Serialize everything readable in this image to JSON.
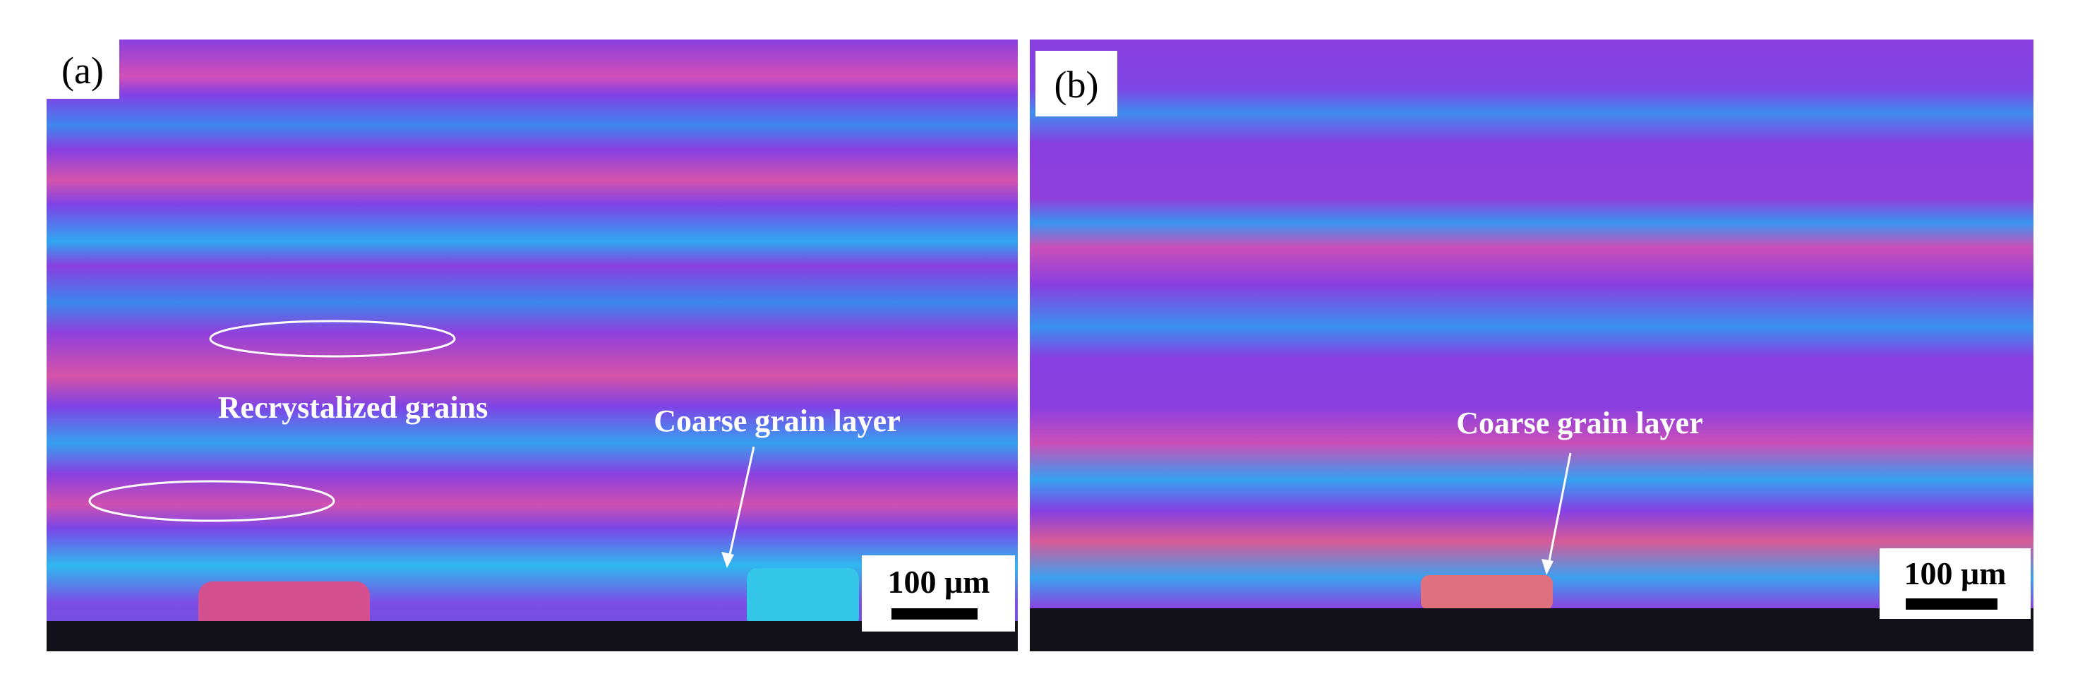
{
  "panels": [
    {
      "label": "(a)",
      "annotations": [
        "Recrystalized grains",
        "Coarse grain layer"
      ],
      "scale_bar": "100 μm"
    },
    {
      "label": "(b)",
      "annotations": [
        "Coarse grain layer"
      ],
      "scale_bar": "100 μm"
    }
  ]
}
